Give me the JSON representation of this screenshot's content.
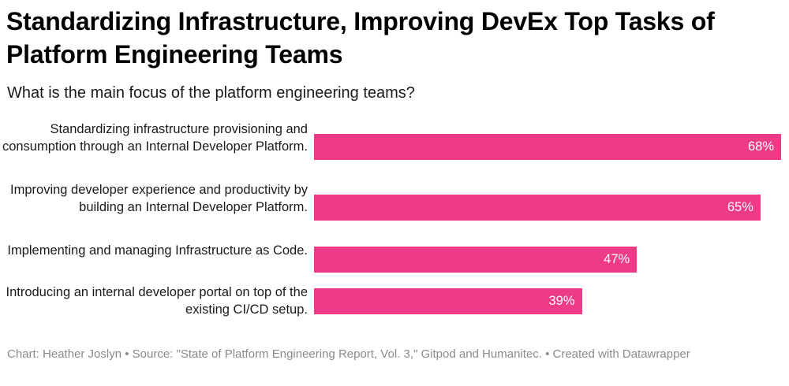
{
  "header": {
    "title": "Standardizing Infrastructure, Improving DevEx Top Tasks of Platform Engineering Teams",
    "subtitle": "What is the main focus of the platform engineering teams?"
  },
  "chart_data": {
    "type": "bar",
    "orientation": "horizontal",
    "title": "Standardizing Infrastructure, Improving DevEx Top Tasks of Platform Engineering Teams",
    "subtitle": "What is the main focus of the platform engineering teams?",
    "categories": [
      "Standardizing infrastructure provisioning and consumption through an Internal Developer Platform.",
      "Improving developer experience and productivity by building an Internal Developer Platform.",
      "Implementing and managing Infrastructure as Code.",
      "Introducing an internal developer portal on top of the existing CI/CD setup."
    ],
    "values": [
      68,
      65,
      47,
      39
    ],
    "value_labels": [
      "68%",
      "65%",
      "47%",
      "39%"
    ],
    "unit": "%",
    "xlim": [
      0,
      68
    ],
    "grid": false,
    "legend": "none",
    "bar_color": "#ee3b88"
  },
  "footer": {
    "text": "Chart: Heather Joslyn • Source: \"State of Platform Engineering Report, Vol. 3,\" Gitpod and Humanitec. • Created with Datawrapper"
  }
}
